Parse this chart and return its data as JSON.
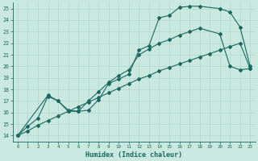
{
  "xlabel": "Humidex (Indice chaleur)",
  "ylabel": "",
  "xlim": [
    -0.5,
    23.5
  ],
  "ylim": [
    13.5,
    25.5
  ],
  "xticks": [
    0,
    1,
    2,
    3,
    4,
    5,
    6,
    7,
    8,
    9,
    10,
    11,
    12,
    13,
    14,
    15,
    16,
    17,
    18,
    19,
    20,
    21,
    22,
    23
  ],
  "yticks": [
    14,
    15,
    16,
    17,
    18,
    19,
    20,
    21,
    22,
    23,
    24,
    25
  ],
  "bg_color": "#c8e8e0",
  "line_color": "#1a6860",
  "grid_color": "#b0d4cc",
  "line1_x": [
    0,
    1,
    2,
    3,
    4,
    5,
    6,
    7,
    8,
    9,
    10,
    11,
    12,
    13,
    14,
    15,
    16,
    17,
    18,
    20,
    21,
    22,
    23
  ],
  "line1_y": [
    14,
    14.8,
    15.5,
    17.4,
    17.0,
    16.1,
    16.1,
    16.2,
    17.1,
    18.5,
    18.9,
    19.3,
    21.4,
    21.8,
    24.2,
    24.4,
    25.1,
    25.2,
    25.2,
    25.0,
    24.7,
    23.4,
    20.0
  ],
  "line2_x": [
    0,
    1,
    2,
    3,
    4,
    5,
    6,
    7,
    8,
    9,
    10,
    11,
    12,
    13,
    14,
    15,
    16,
    17,
    18,
    19,
    20,
    21,
    22,
    23
  ],
  "line2_y": [
    14,
    14.4,
    14.9,
    15.3,
    15.7,
    16.1,
    16.5,
    16.9,
    17.3,
    17.7,
    18.1,
    18.5,
    18.9,
    19.2,
    19.6,
    19.9,
    20.2,
    20.5,
    20.8,
    21.1,
    21.4,
    21.7,
    22.0,
    19.8
  ],
  "line3_x": [
    0,
    3,
    4,
    5,
    6,
    7,
    8,
    9,
    10,
    11,
    12,
    13,
    14,
    15,
    16,
    17,
    18,
    20,
    21,
    22,
    23
  ],
  "line3_y": [
    14,
    17.5,
    17.0,
    16.2,
    16.1,
    17.0,
    17.8,
    18.6,
    19.2,
    19.7,
    21.0,
    21.5,
    22.0,
    22.3,
    22.7,
    23.0,
    23.3,
    22.8,
    20.0,
    19.7,
    19.8
  ]
}
